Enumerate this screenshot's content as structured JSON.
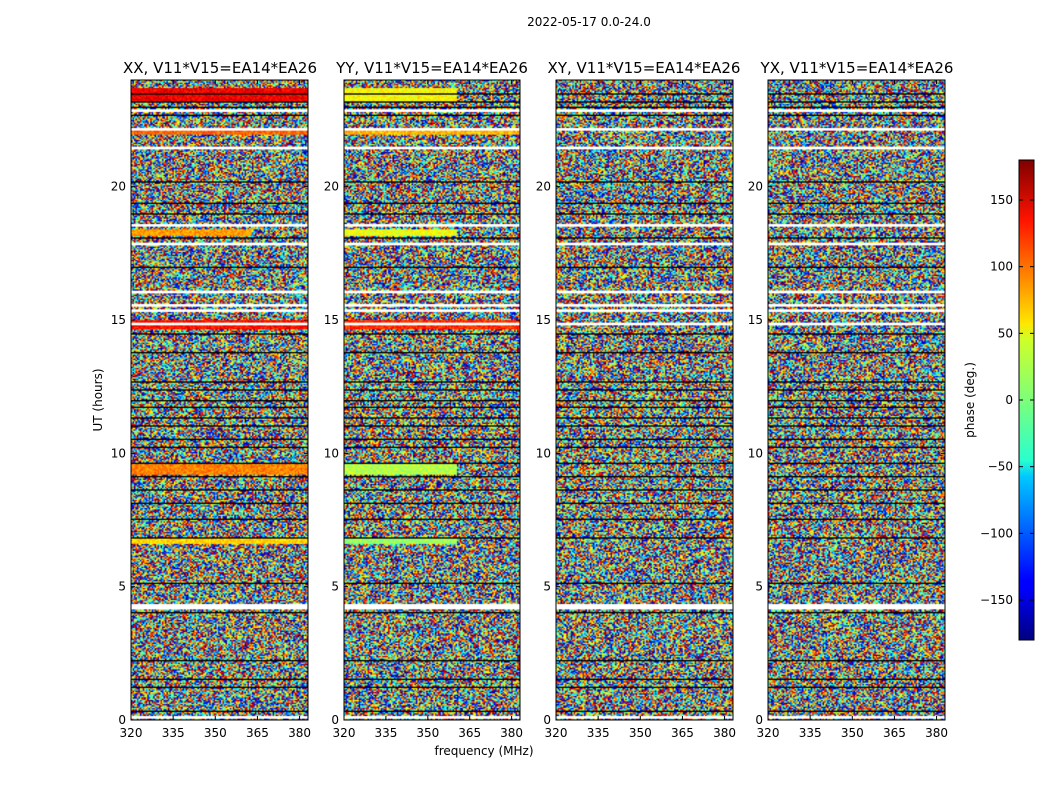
{
  "chart_data": {
    "type": "heatmap",
    "suptitle": "2022-05-17 0.0-24.0",
    "panels": [
      {
        "title": "XX, V11*V15=EA14*EA26",
        "pol": "XX"
      },
      {
        "title": "YY, V11*V15=EA14*EA26",
        "pol": "YY"
      },
      {
        "title": "XY, V11*V15=EA14*EA26",
        "pol": "XY"
      },
      {
        "title": "YX, V11*V15=EA14*EA26",
        "pol": "YX"
      }
    ],
    "xlabel": "frequency (MHz)",
    "ylabel": "UT (hours)",
    "xlim": [
      320,
      383
    ],
    "ylim": [
      0,
      24
    ],
    "xticks": [
      320,
      335,
      350,
      365,
      380
    ],
    "xtick_labels": [
      "320",
      "335",
      "350",
      "365",
      "380"
    ],
    "yticks": [
      0,
      5,
      10,
      15,
      20
    ],
    "ytick_labels": [
      "0",
      "5",
      "10",
      "15",
      "20"
    ],
    "colorbar": {
      "label": "phase (deg.)",
      "range": [
        -180,
        180
      ],
      "ticks": [
        150,
        100,
        50,
        0,
        -50,
        -100,
        -150
      ],
      "tick_labels": [
        "150",
        "100",
        "50",
        "0",
        "−50",
        "−100",
        "−150"
      ],
      "colormap": "jet"
    },
    "gap_hours": [
      0.1,
      4.2,
      4.3,
      14.9,
      15.4,
      15.6,
      16.1,
      17.9,
      18.6,
      21.5,
      22.2,
      22.9
    ],
    "flagged_hours": [
      0.3,
      1.2,
      1.5,
      2.2,
      4.0,
      5.1,
      6.8,
      7.5,
      8.1,
      8.6,
      9.1,
      9.6,
      10.2,
      10.5,
      11.0,
      11.3,
      11.7,
      12.0,
      12.4,
      12.7,
      13.8,
      14.5,
      17.0,
      18.1,
      19.0,
      19.4,
      20.2,
      22.7,
      23.0,
      23.2,
      23.5
    ],
    "coherent_bands": [
      {
        "panel": "XX",
        "start": 23.2,
        "end": 23.7,
        "phase": 140,
        "freq_max": 383
      },
      {
        "panel": "XX",
        "start": 22.0,
        "end": 22.2,
        "phase": 100,
        "freq_max": 383
      },
      {
        "panel": "XX",
        "start": 18.2,
        "end": 18.4,
        "phase": 80,
        "freq_max": 363
      },
      {
        "panel": "XX",
        "start": 14.7,
        "end": 15.0,
        "phase": 130,
        "freq_max": 383
      },
      {
        "panel": "XX",
        "start": 9.2,
        "end": 9.6,
        "phase": 90,
        "freq_max": 383
      },
      {
        "panel": "XX",
        "start": 6.6,
        "end": 6.8,
        "phase": 60,
        "freq_max": 383
      },
      {
        "panel": "YY",
        "start": 23.2,
        "end": 23.7,
        "phase": 45,
        "freq_max": 360
      },
      {
        "panel": "YY",
        "start": 22.0,
        "end": 22.2,
        "phase": 70,
        "freq_max": 383
      },
      {
        "panel": "YY",
        "start": 18.2,
        "end": 18.4,
        "phase": 40,
        "freq_max": 360
      },
      {
        "panel": "YY",
        "start": 14.7,
        "end": 15.0,
        "phase": 120,
        "freq_max": 383
      },
      {
        "panel": "YY",
        "start": 9.2,
        "end": 9.6,
        "phase": 20,
        "freq_max": 360
      },
      {
        "panel": "YY",
        "start": 6.6,
        "end": 6.8,
        "phase": 10,
        "freq_max": 360
      }
    ]
  }
}
